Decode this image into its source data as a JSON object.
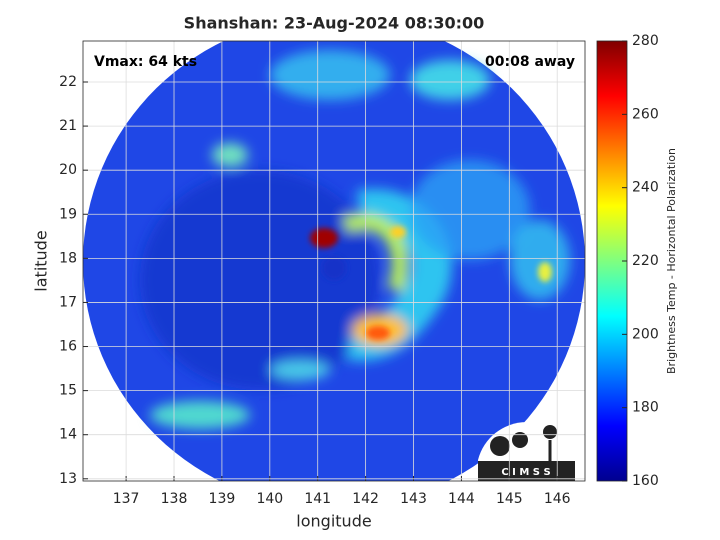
{
  "chart_data": {
    "type": "image",
    "title": "Shanshan: 23-Aug-2024 08:30:00",
    "xlabel": "longitude",
    "ylabel": "latitude",
    "xlim": [
      136.1,
      146.58
    ],
    "ylim": [
      12.95,
      22.93
    ],
    "xticks": [
      137,
      138,
      139,
      140,
      141,
      142,
      143,
      144,
      145,
      146
    ],
    "yticks": [
      13,
      14,
      15,
      16,
      17,
      18,
      19,
      20,
      21,
      22
    ],
    "grid": true,
    "annotations": [
      "Vmax: 64 kts",
      "00:08 away"
    ],
    "logo": "C I M S S",
    "colorbar": {
      "label": "Brightness Temp - Horizontal Polarization",
      "lim": [
        160,
        280
      ],
      "ticks": [
        160,
        180,
        200,
        220,
        240,
        260,
        280
      ],
      "colormap": "jet"
    }
  }
}
